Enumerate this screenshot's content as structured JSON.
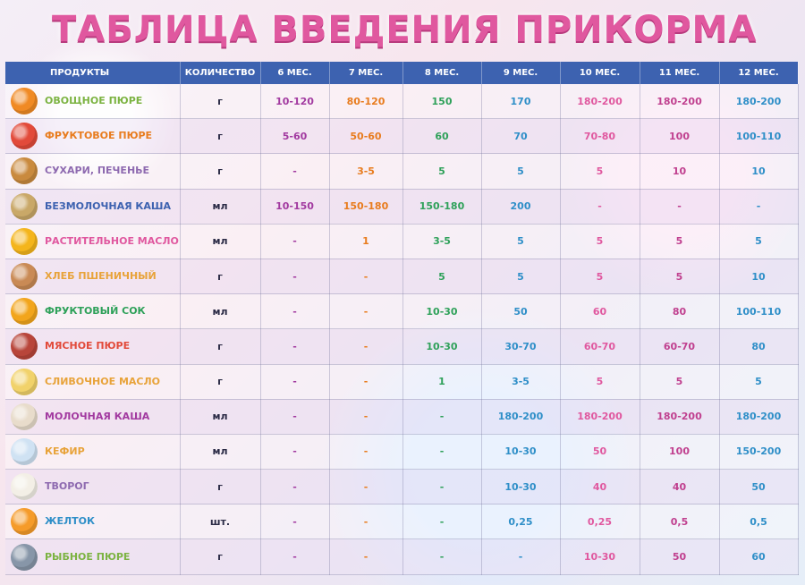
{
  "title": "ТАБЛИЦА ВВЕДЕНИЯ ПРИКОРМА",
  "headers": [
    "ПРОДУКТЫ",
    "КОЛИЧЕСТВО",
    "6 МЕС.",
    "7 МЕС.",
    "8 МЕС.",
    "9 МЕС.",
    "10 МЕС.",
    "11 МЕС.",
    "12 МЕС."
  ],
  "column_colors": [
    "#2a2a45",
    "#2a2a45",
    "#a23aa0",
    "#e87c1e",
    "#2fa15a",
    "#2f8fc8",
    "#e0589f",
    "#c0408f",
    "#2f8fc8"
  ],
  "rows": [
    {
      "name": "ОВОЩНОЕ ПЮРЕ",
      "name_color": "#7cb342",
      "icon": "carrot-pumpkin-icon",
      "icon_color": "#f08a24",
      "unit": "г",
      "values": [
        "10-120",
        "80-120",
        "150",
        "170",
        "180-200",
        "180-200",
        "180-200"
      ]
    },
    {
      "name": "ФРУКТОВОЕ ПЮРЕ",
      "name_color": "#e87c1e",
      "icon": "fruit-jar-icon",
      "icon_color": "#e24a3a",
      "unit": "г",
      "values": [
        "5-60",
        "50-60",
        "60",
        "70",
        "70-80",
        "100",
        "100-110"
      ]
    },
    {
      "name": "СУХАРИ, ПЕЧЕНЬЕ",
      "name_color": "#8e6ab0",
      "icon": "cookie-icon",
      "icon_color": "#c98a3e",
      "unit": "г",
      "values": [
        "-",
        "3-5",
        "5",
        "5",
        "5",
        "10",
        "10"
      ]
    },
    {
      "name": "БЕЗМОЛОЧНАЯ КАША",
      "name_color": "#3d62b0",
      "icon": "porridge-bowl-icon",
      "icon_color": "#c9a868",
      "unit": "мл",
      "values": [
        "10-150",
        "150-180",
        "150-180",
        "200",
        "-",
        "-",
        "-"
      ]
    },
    {
      "name": "РАСТИТЕЛЬНОЕ МАСЛО",
      "name_color": "#e0589f",
      "icon": "sunflower-icon",
      "icon_color": "#f4b51c",
      "unit": "мл",
      "values": [
        "-",
        "1",
        "3-5",
        "5",
        "5",
        "5",
        "5"
      ]
    },
    {
      "name": "ХЛЕБ ПШЕНИЧНЫЙ",
      "name_color": "#e8a33a",
      "icon": "bread-icon",
      "icon_color": "#c98a55",
      "unit": "г",
      "values": [
        "-",
        "-",
        "5",
        "5",
        "5",
        "5",
        "10"
      ]
    },
    {
      "name": "ФРУКТОВЫЙ СОК",
      "name_color": "#2fa15a",
      "icon": "juice-cup-icon",
      "icon_color": "#f2a51c",
      "unit": "мл",
      "values": [
        "-",
        "-",
        "10-30",
        "50",
        "60",
        "80",
        "100-110"
      ]
    },
    {
      "name": "МЯСНОЕ ПЮРЕ",
      "name_color": "#e24a3a",
      "icon": "meat-icon",
      "icon_color": "#b8453a",
      "unit": "г",
      "values": [
        "-",
        "-",
        "10-30",
        "30-70",
        "60-70",
        "60-70",
        "80"
      ]
    },
    {
      "name": "СЛИВОЧНОЕ МАСЛО",
      "name_color": "#e8a33a",
      "icon": "butter-icon",
      "icon_color": "#f1d26a",
      "unit": "г",
      "values": [
        "-",
        "-",
        "1",
        "3-5",
        "5",
        "5",
        "5"
      ]
    },
    {
      "name": "МОЛОЧНАЯ КАША",
      "name_color": "#a23aa0",
      "icon": "milk-porridge-icon",
      "icon_color": "#e8dccb",
      "unit": "мл",
      "values": [
        "-",
        "-",
        "-",
        "180-200",
        "180-200",
        "180-200",
        "180-200"
      ]
    },
    {
      "name": "КЕФИР",
      "name_color": "#e8a33a",
      "icon": "kefir-glass-icon",
      "icon_color": "#cfe2f3",
      "unit": "мл",
      "values": [
        "-",
        "-",
        "-",
        "10-30",
        "50",
        "100",
        "150-200"
      ]
    },
    {
      "name": "ТВОРОГ",
      "name_color": "#8e6ab0",
      "icon": "cottage-cheese-icon",
      "icon_color": "#f3efe6",
      "unit": "г",
      "values": [
        "-",
        "-",
        "-",
        "10-30",
        "40",
        "40",
        "50"
      ]
    },
    {
      "name": "ЖЕЛТОК",
      "name_color": "#2f8fc8",
      "icon": "egg-yolk-icon",
      "icon_color": "#f59b2a",
      "unit": "шт.",
      "values": [
        "-",
        "-",
        "-",
        "0,25",
        "0,25",
        "0,5",
        "0,5"
      ]
    },
    {
      "name": "РЫБНОЕ ПЮРЕ",
      "name_color": "#7cb342",
      "icon": "fish-icon",
      "icon_color": "#8796a8",
      "unit": "г",
      "values": [
        "-",
        "-",
        "-",
        "-",
        "10-30",
        "50",
        "60"
      ]
    }
  ]
}
